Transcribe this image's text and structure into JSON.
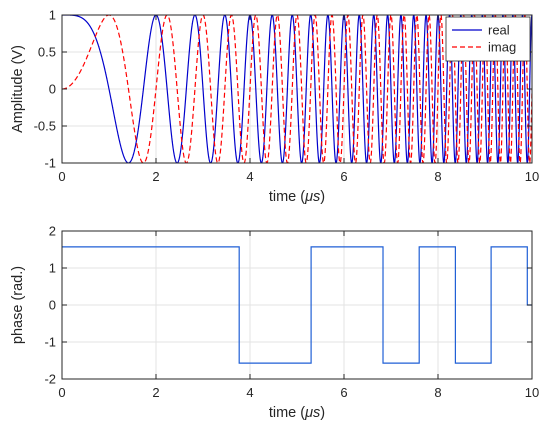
{
  "chart_data": [
    {
      "type": "line",
      "xlabel_prefix": "time (",
      "xlabel_unit": "μs",
      "xlabel_suffix": ")",
      "ylabel": "Amplitude (V)",
      "xlim": [
        0,
        10
      ],
      "ylim": [
        -1,
        1
      ],
      "xticks": [
        0,
        2,
        4,
        6,
        8,
        10
      ],
      "yticks": [
        -1,
        -0.5,
        0,
        0.5,
        1
      ],
      "xtick_labels": [
        "0",
        "2",
        "4",
        "6",
        "8",
        "10"
      ],
      "ytick_labels": [
        "-1",
        "-0.5",
        "0",
        "0.5",
        "1"
      ],
      "grid": true,
      "legend_position": "top-right",
      "series": [
        {
          "name": "real",
          "color": "#0000cc",
          "style": "solid",
          "function": "cos(pi/2 * t^2)",
          "t_range": [
            0,
            10
          ],
          "x": [
            0,
            1,
            1.414,
            1.732,
            2,
            2.236,
            2.449,
            2.646,
            2.828,
            3
          ],
          "values": [
            1,
            0,
            -1,
            0,
            1,
            0,
            -1,
            0,
            1,
            0
          ]
        },
        {
          "name": "imag",
          "color": "#ff0000",
          "style": "dashed",
          "function": "sin(pi/2 * t^2)",
          "t_range": [
            0,
            10
          ],
          "x": [
            0,
            1,
            1.414,
            1.732,
            2,
            2.236,
            2.449,
            2.646,
            2.828,
            3
          ],
          "values": [
            0,
            1,
            0,
            -1,
            0,
            1,
            0,
            -1,
            0,
            1
          ]
        }
      ]
    },
    {
      "type": "line",
      "xlabel_prefix": "time (",
      "xlabel_unit": "μs",
      "xlabel_suffix": ")",
      "ylabel": "phase (rad.)",
      "xlim": [
        0,
        10
      ],
      "ylim": [
        -2,
        2
      ],
      "xticks": [
        0,
        2,
        4,
        6,
        8,
        10
      ],
      "yticks": [
        -2,
        -1,
        0,
        1,
        2
      ],
      "xtick_labels": [
        "0",
        "2",
        "4",
        "6",
        "8",
        "10"
      ],
      "ytick_labels": [
        "-2",
        "-1",
        "0",
        "1",
        "2"
      ],
      "grid": true,
      "series": [
        {
          "name": "",
          "color": "#1f5fd6",
          "style": "solid",
          "x": [
            0,
            3.77,
            3.77,
            5.3,
            5.3,
            6.83,
            6.83,
            7.6,
            7.6,
            8.37,
            8.37,
            9.13,
            9.13,
            9.9,
            9.9,
            10
          ],
          "values": [
            1.571,
            1.571,
            -1.571,
            -1.571,
            1.571,
            1.571,
            -1.571,
            -1.571,
            1.571,
            1.571,
            -1.571,
            -1.571,
            1.571,
            1.571,
            0,
            0
          ]
        }
      ]
    }
  ]
}
